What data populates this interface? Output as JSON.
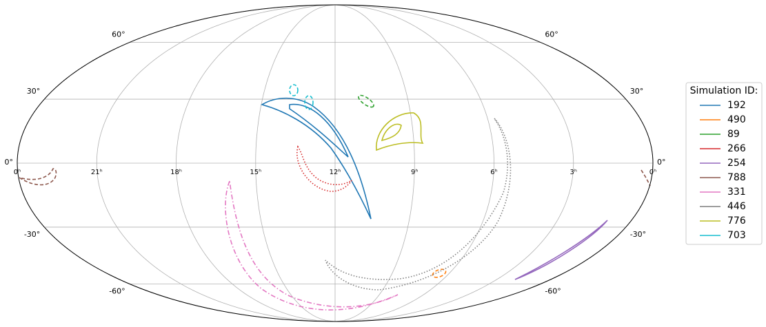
{
  "chart_data": {
    "type": "mollweide",
    "xlim": [
      24,
      0
    ],
    "xticks": [
      {
        "value": 24,
        "label": "0ʰ"
      },
      {
        "value": 21,
        "label": "21ʰ"
      },
      {
        "value": 18,
        "label": "18ʰ"
      },
      {
        "value": 15,
        "label": "15ʰ"
      },
      {
        "value": 12,
        "label": "12ʰ"
      },
      {
        "value": 9,
        "label": "9ʰ"
      },
      {
        "value": 6,
        "label": "6ʰ"
      },
      {
        "value": 3,
        "label": "3ʰ"
      },
      {
        "value": 0,
        "label": "0ʰ"
      }
    ],
    "ylim": [
      -90,
      90
    ],
    "yticks": [
      {
        "value": -60,
        "label": "-60°"
      },
      {
        "value": -30,
        "label": "-30°"
      },
      {
        "value": 0,
        "label": "0°"
      },
      {
        "value": 30,
        "label": "30°"
      },
      {
        "value": 60,
        "label": "60°"
      }
    ],
    "grid": true,
    "legend": {
      "title": "Simulation ID:",
      "position": "right"
    },
    "series": [
      {
        "name": "192",
        "color": "#1f77b4",
        "linestyle": "solid"
      },
      {
        "name": "490",
        "color": "#ff7f0e",
        "linestyle": "dashed"
      },
      {
        "name": "89",
        "color": "#2ca02c",
        "linestyle": "dashed"
      },
      {
        "name": "266",
        "color": "#d62728",
        "linestyle": "dotted"
      },
      {
        "name": "254",
        "color": "#9467bd",
        "linestyle": "solid"
      },
      {
        "name": "788",
        "color": "#8c564b",
        "linestyle": "dashed"
      },
      {
        "name": "331",
        "color": "#e377c2",
        "linestyle": "dashdot"
      },
      {
        "name": "446",
        "color": "#7f7f7f",
        "linestyle": "dotted"
      },
      {
        "name": "776",
        "color": "#bcbd22",
        "linestyle": "solid"
      },
      {
        "name": "703",
        "color": "#17becf",
        "linestyle": "dashed"
      }
    ]
  }
}
